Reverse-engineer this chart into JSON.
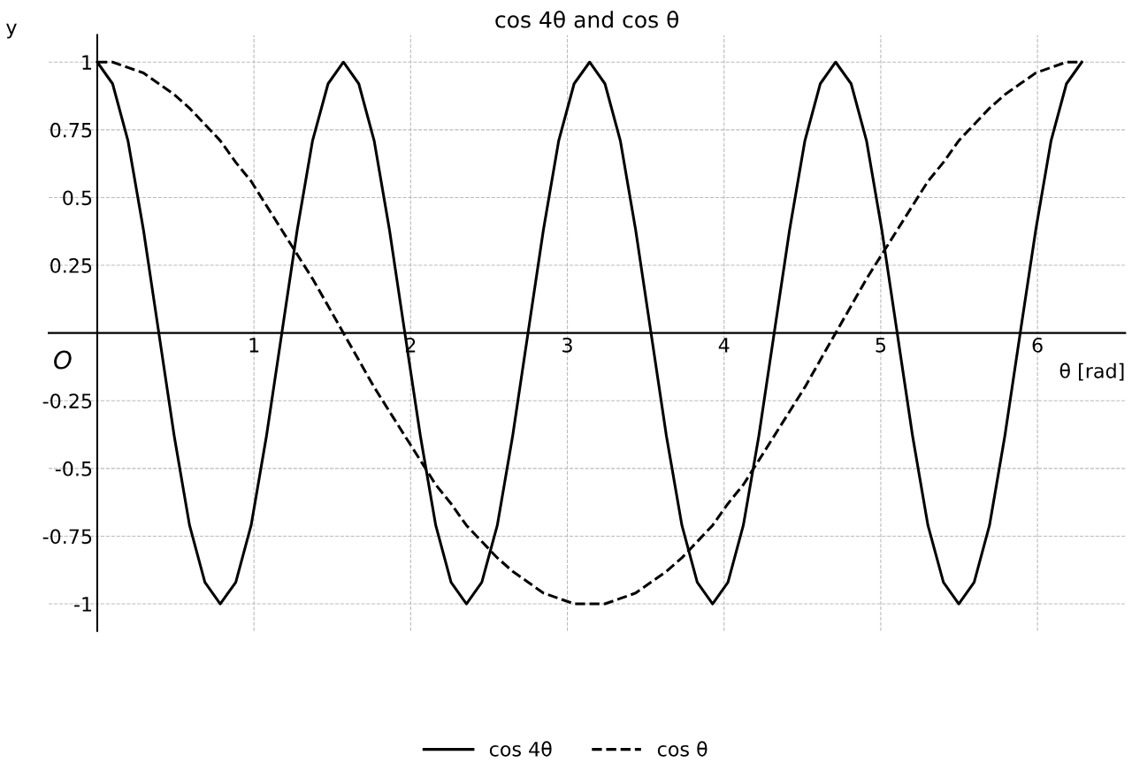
{
  "chart_data": {
    "type": "line",
    "title": "cos 4θ and cos θ",
    "xlabel": "θ [rad]",
    "ylabel": "y",
    "annotations": [
      "O"
    ],
    "x": [
      0,
      0.098,
      0.196,
      0.295,
      0.393,
      0.491,
      0.589,
      0.687,
      0.785,
      0.884,
      0.982,
      1.08,
      1.178,
      1.276,
      1.374,
      1.473,
      1.571,
      1.669,
      1.767,
      1.865,
      1.963,
      2.062,
      2.16,
      2.258,
      2.356,
      2.454,
      2.553,
      2.651,
      2.749,
      2.847,
      2.945,
      3.043,
      3.142,
      3.24,
      3.338,
      3.436,
      3.534,
      3.632,
      3.731,
      3.829,
      3.927,
      4.025,
      4.123,
      4.222,
      4.32,
      4.418,
      4.516,
      4.614,
      4.712,
      4.811,
      4.909,
      5.007,
      5.105,
      5.203,
      5.301,
      5.4,
      5.498,
      5.596,
      5.694,
      5.792,
      5.89,
      5.989,
      6.087,
      6.185,
      6.283
    ],
    "series": [
      {
        "name": "cos 4θ",
        "color": "#000000",
        "line_style": "solid",
        "values": [
          1,
          0.92,
          0.71,
          0.38,
          0,
          -0.38,
          -0.71,
          -0.92,
          -1,
          -0.92,
          -0.71,
          -0.38,
          0,
          0.38,
          0.71,
          0.92,
          1,
          0.92,
          0.71,
          0.38,
          0,
          -0.38,
          -0.71,
          -0.92,
          -1,
          -0.92,
          -0.71,
          -0.38,
          0,
          0.38,
          0.71,
          0.92,
          1,
          0.92,
          0.71,
          0.38,
          0,
          -0.38,
          -0.71,
          -0.92,
          -1,
          -0.92,
          -0.71,
          -0.38,
          0,
          0.38,
          0.71,
          0.92,
          1,
          0.92,
          0.71,
          0.38,
          0,
          -0.38,
          -0.71,
          -0.92,
          -1,
          -0.92,
          -0.71,
          -0.38,
          0,
          0.38,
          0.71,
          0.92,
          1
        ]
      },
      {
        "name": "cos θ",
        "color": "#000000",
        "line_style": "dashed",
        "values": [
          1,
          1.0,
          0.98,
          0.96,
          0.92,
          0.88,
          0.83,
          0.77,
          0.71,
          0.63,
          0.56,
          0.47,
          0.38,
          0.29,
          0.2,
          0.1,
          0,
          -0.1,
          -0.2,
          -0.29,
          -0.38,
          -0.47,
          -0.56,
          -0.63,
          -0.71,
          -0.77,
          -0.83,
          -0.88,
          -0.92,
          -0.96,
          -0.98,
          -1.0,
          -1,
          -1.0,
          -0.98,
          -0.96,
          -0.92,
          -0.88,
          -0.83,
          -0.77,
          -0.71,
          -0.63,
          -0.56,
          -0.47,
          -0.38,
          -0.29,
          -0.2,
          -0.1,
          0,
          0.1,
          0.2,
          0.29,
          0.38,
          0.47,
          0.56,
          0.63,
          0.71,
          0.77,
          0.83,
          0.88,
          0.92,
          0.96,
          0.98,
          1.0,
          1
        ]
      }
    ],
    "xlim": [
      -0.31,
      6.56
    ],
    "ylim": [
      -1.1,
      1.1
    ],
    "xticks": [
      1,
      2,
      3,
      4,
      5,
      6
    ],
    "yticks": [
      -1,
      -0.75,
      -0.5,
      -0.25,
      0.25,
      0.5,
      0.75,
      1
    ],
    "grid": true,
    "legend": "bottom",
    "marker": "none"
  }
}
